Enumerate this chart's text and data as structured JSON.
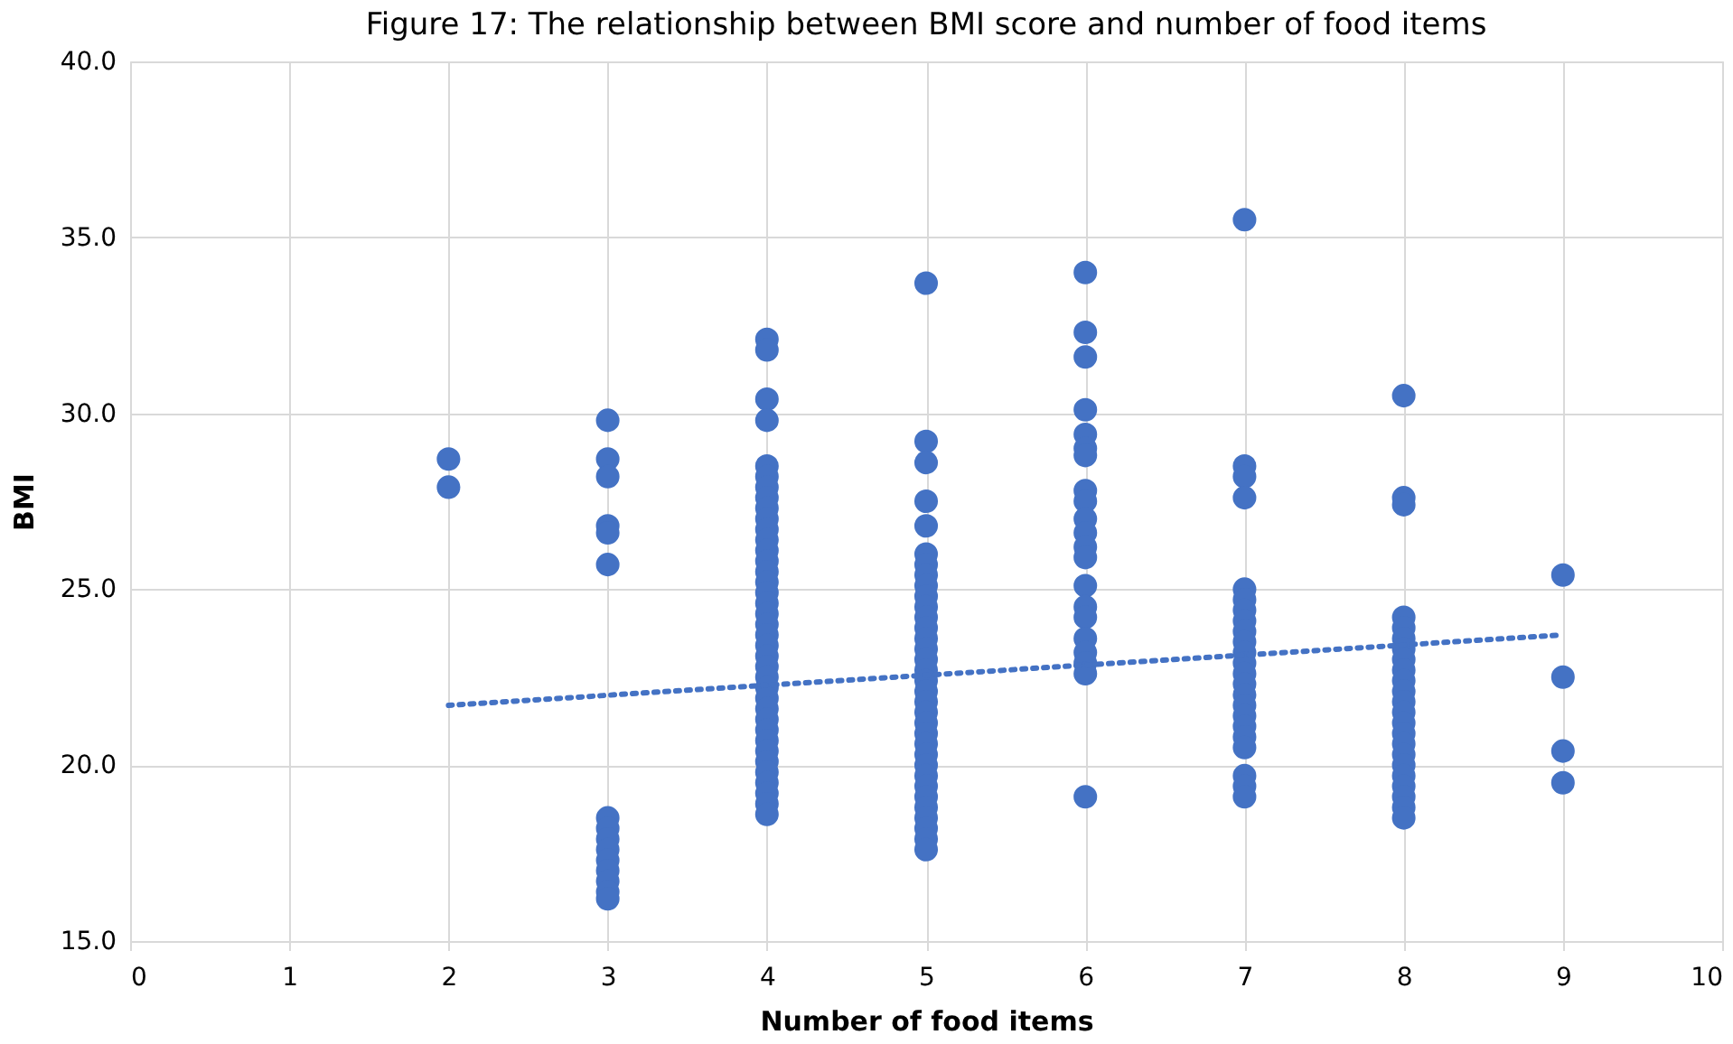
{
  "chart_data": {
    "type": "scatter",
    "title": "Figure 17: The relationship between BMI score and number of food items",
    "xlabel": "Number of food items",
    "ylabel": "BMI",
    "xlim": [
      0,
      10
    ],
    "xticks": [
      0,
      1,
      2,
      3,
      4,
      5,
      6,
      7,
      8,
      9,
      10
    ],
    "ylim": [
      15,
      40
    ],
    "yticks": [
      {
        "value": 15,
        "label": "15.0"
      },
      {
        "value": 20,
        "label": "20.0"
      },
      {
        "value": 25,
        "label": "25.0"
      },
      {
        "value": 30,
        "label": "30.0"
      },
      {
        "value": 35,
        "label": "35.0"
      },
      {
        "value": 40,
        "label": "40.0"
      }
    ],
    "grid": true,
    "series": [
      {
        "color": "#4472c4",
        "marker": "circle",
        "x": [
          2,
          2,
          3,
          3,
          3,
          3,
          3,
          3,
          3,
          3,
          3,
          3,
          3,
          3,
          3,
          3,
          3,
          4,
          4,
          4,
          4,
          4,
          4,
          4,
          4,
          4,
          4,
          4,
          4,
          4,
          4,
          4,
          4,
          4,
          4,
          4,
          4,
          4,
          4,
          4,
          4,
          4,
          4,
          4,
          4,
          4,
          4,
          4,
          4,
          4,
          4,
          4,
          4,
          4,
          4,
          5,
          5,
          5,
          5,
          5,
          5,
          5,
          5,
          5,
          5,
          5,
          5,
          5,
          5,
          5,
          5,
          5,
          5,
          5,
          5,
          5,
          5,
          5,
          5,
          5,
          5,
          5,
          5,
          5,
          5,
          5,
          5,
          5,
          5,
          6,
          6,
          6,
          6,
          6,
          6,
          6,
          6,
          6,
          6,
          6,
          6,
          6,
          6,
          6,
          6,
          6,
          6,
          6,
          6,
          6,
          7,
          7,
          7,
          7,
          7,
          7,
          7,
          7,
          7,
          7,
          7,
          7,
          7,
          7,
          7,
          7,
          7,
          7,
          7,
          7,
          7,
          7,
          7,
          8,
          8,
          8,
          8,
          8,
          8,
          8,
          8,
          8,
          8,
          8,
          8,
          8,
          8,
          8,
          8,
          8,
          8,
          8,
          8,
          8,
          8,
          8,
          9,
          9,
          9,
          9
        ],
        "values": [
          28.7,
          27.9,
          29.8,
          28.7,
          28.2,
          26.8,
          26.6,
          25.7,
          18.5,
          18.2,
          17.9,
          17.6,
          17.3,
          17.0,
          16.7,
          16.4,
          16.2,
          32.1,
          31.8,
          30.4,
          29.8,
          28.5,
          28.2,
          27.9,
          27.6,
          27.3,
          27.0,
          26.7,
          26.4,
          26.1,
          25.8,
          25.5,
          25.2,
          24.9,
          24.6,
          24.3,
          24.0,
          23.7,
          23.4,
          23.1,
          22.8,
          22.5,
          22.2,
          21.9,
          21.6,
          21.3,
          21.0,
          20.7,
          20.4,
          20.1,
          19.8,
          19.5,
          19.2,
          18.9,
          18.6,
          33.7,
          29.2,
          28.6,
          27.5,
          26.8,
          26.0,
          25.7,
          25.4,
          25.1,
          24.8,
          24.5,
          24.2,
          23.9,
          23.6,
          23.3,
          23.0,
          22.7,
          22.4,
          22.1,
          21.8,
          21.5,
          21.2,
          20.9,
          20.6,
          20.3,
          20.0,
          19.7,
          19.4,
          19.1,
          18.8,
          18.5,
          18.2,
          17.9,
          17.6,
          34.0,
          32.3,
          31.6,
          30.1,
          29.4,
          29.0,
          28.8,
          27.8,
          27.5,
          27.0,
          26.6,
          26.2,
          25.9,
          25.1,
          24.5,
          24.2,
          23.6,
          23.2,
          22.9,
          22.6,
          19.1,
          35.5,
          28.5,
          28.2,
          27.6,
          25.0,
          24.7,
          24.4,
          24.1,
          23.8,
          23.5,
          23.2,
          22.9,
          22.6,
          22.3,
          22.0,
          21.7,
          21.4,
          21.1,
          20.8,
          20.5,
          19.7,
          19.4,
          19.1,
          30.5,
          27.6,
          27.4,
          24.2,
          23.9,
          23.6,
          23.3,
          23.0,
          22.7,
          22.4,
          22.1,
          21.8,
          21.5,
          21.2,
          20.9,
          20.6,
          20.3,
          20.0,
          19.7,
          19.4,
          19.1,
          18.8,
          18.5,
          25.4,
          22.5,
          20.4,
          19.5
        ]
      },
      {
        "type": "line",
        "color": "#4472c4",
        "marker": "none",
        "line_style": "dotted",
        "x": [
          2,
          9
        ],
        "values": [
          21.7,
          23.7
        ]
      }
    ]
  }
}
